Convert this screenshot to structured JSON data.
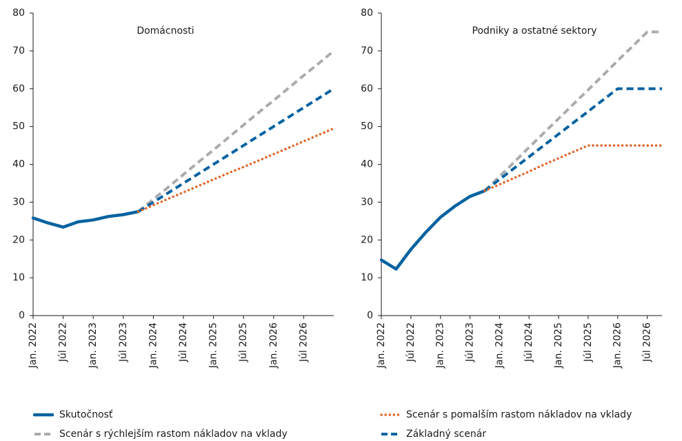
{
  "chart_data": [
    {
      "type": "line",
      "title": "Domácnosti",
      "categories": [
        "Jan. 2022",
        null,
        "Júl 2022",
        null,
        "Jan. 2023",
        null,
        "Júl 2023",
        null,
        "Jan. 2024",
        null,
        "Júl 2024",
        null,
        "Jan. 2025",
        null,
        "Júl 2025",
        null,
        "Jan. 2026",
        null,
        "Júl 2026",
        null,
        null
      ],
      "ylim": [
        0,
        80
      ],
      "yticks": [
        0,
        10,
        20,
        30,
        40,
        50,
        60,
        70,
        80
      ],
      "series": [
        {
          "name": "Skutočnosť",
          "color": "#0062a0",
          "style": "solid",
          "values": [
            25.8,
            24.5,
            23.4,
            24.8,
            25.3,
            26.2,
            26.7,
            27.5,
            null,
            null,
            null,
            null,
            null,
            null,
            null,
            null,
            null,
            null,
            null,
            null,
            null
          ]
        },
        {
          "name": "Scenár s rýchlejším rastom nákladov na vklady",
          "color": "#a9abae",
          "style": "dashed",
          "values": [
            null,
            null,
            null,
            null,
            null,
            null,
            null,
            27.5,
            30.8,
            34.0,
            37.3,
            40.6,
            43.8,
            47.1,
            50.4,
            53.7,
            56.9,
            60.2,
            63.5,
            66.7,
            70
          ]
        },
        {
          "name": "Základný scenár",
          "color": "#0062a0",
          "style": "dashed",
          "values": [
            null,
            null,
            null,
            null,
            null,
            null,
            null,
            27.5,
            30,
            32.5,
            35,
            37.5,
            40,
            42.5,
            45,
            47.5,
            50,
            52.5,
            55,
            57.5,
            60
          ]
        },
        {
          "name": "Scenár s pomalším rastom nákladov na vklady",
          "color": "#e0662a",
          "style": "dotted",
          "values": [
            null,
            null,
            null,
            null,
            null,
            null,
            null,
            27.5,
            29.2,
            30.9,
            32.6,
            34.3,
            36.0,
            37.7,
            39.3,
            41.0,
            42.7,
            44.4,
            46.1,
            47.8,
            49.5
          ]
        }
      ]
    },
    {
      "type": "line",
      "title": "Podniky a ostatné sektory",
      "categories": [
        "Jan. 2022",
        null,
        "Júl 2022",
        null,
        "Jan. 2023",
        null,
        "Júl 2023",
        null,
        "Jan. 2024",
        null,
        "Júl 2024",
        null,
        "Jan. 2025",
        null,
        "Júl 2025",
        null,
        "Jan. 2026",
        null,
        "Júl 2026",
        null
      ],
      "ylim": [
        0,
        80
      ],
      "yticks": [
        0,
        10,
        20,
        30,
        40,
        50,
        60,
        70,
        80
      ],
      "series": [
        {
          "name": "Skutočnosť",
          "color": "#0062a0",
          "style": "solid",
          "values": [
            14.7,
            12.3,
            17.5,
            22,
            26,
            29,
            31.5,
            33,
            null,
            null,
            null,
            null,
            null,
            null,
            null,
            null,
            null,
            null,
            null,
            null
          ]
        },
        {
          "name": "Scenár s rýchlejším rastom nákladov na vklady",
          "color": "#a9abae",
          "style": "dashed",
          "values": [
            null,
            null,
            null,
            null,
            null,
            null,
            null,
            33,
            36.8,
            40.6,
            44.5,
            48.3,
            52.1,
            55.9,
            59.7,
            63.5,
            67.4,
            71.2,
            75,
            75
          ]
        },
        {
          "name": "Základný scenár",
          "color": "#0062a0",
          "style": "dashed",
          "values": [
            null,
            null,
            null,
            null,
            null,
            null,
            null,
            33,
            36,
            39,
            42,
            45,
            48,
            51,
            54,
            57,
            60,
            60,
            60,
            60
          ]
        },
        {
          "name": "Scenár s pomalším rastom nákladov na vklady",
          "color": "#e0662a",
          "style": "dotted",
          "values": [
            null,
            null,
            null,
            null,
            null,
            null,
            null,
            33,
            34.7,
            36.4,
            38.1,
            39.9,
            41.6,
            43.3,
            45,
            45,
            45,
            45,
            45,
            45
          ]
        }
      ]
    }
  ]
}
